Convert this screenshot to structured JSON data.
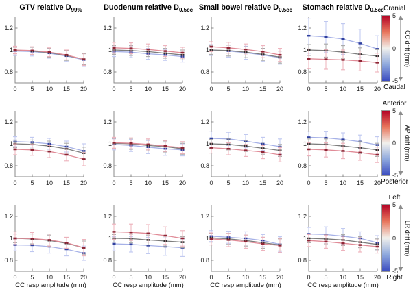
{
  "chart_data": {
    "type": "line",
    "layout": {
      "rows": 3,
      "cols": 4
    },
    "x": [
      0,
      5,
      10,
      15,
      20
    ],
    "xticks": [
      "0",
      "5",
      "10",
      "15",
      "20"
    ],
    "yticks": [
      "0.8",
      "1",
      "1.2"
    ],
    "ytick_values": [
      0.8,
      1.0,
      1.2
    ],
    "ylim": [
      0.7,
      1.3
    ],
    "xlim": [
      0,
      20
    ],
    "grid": "off",
    "xlabel": "CC resp amplitude (mm)",
    "col_titles": [
      {
        "text": "GTV relative D",
        "sub": "99%"
      },
      {
        "text": "Duodenum relative D",
        "sub": "0.5cc"
      },
      {
        "text": "Small bowel relative D",
        "sub": "0.5cc"
      },
      {
        "text": "Stomach relative D",
        "sub": "0.5cc"
      }
    ],
    "series_styles": {
      "plus5": {
        "colorbar_value": 5,
        "line": "#e08b97",
        "error": "#edb0ba",
        "marker": "#8e2636"
      },
      "zero": {
        "colorbar_value": 0,
        "line": "#7d7d7d",
        "error": "#a8a8a8",
        "marker": "#303030"
      },
      "minus5": {
        "colorbar_value": -5,
        "line": "#a6b1e7",
        "error": "#bec7f0",
        "marker": "#2f3f9e"
      }
    },
    "colorbar_gradient": [
      "#b40426",
      "#e8765c",
      "#f1f0ec",
      "#8ea8dd",
      "#3b4cc0"
    ],
    "colorbars": [
      {
        "axis_label": "CC drift (mm)",
        "top_label": "Cranial",
        "bottom_label": "Caudal",
        "ticks": {
          "top": "5",
          "mid": "0",
          "bottom": "-5"
        }
      },
      {
        "axis_label": "AP drift (mm)",
        "top_label": "Anterior",
        "bottom_label": "Posterior",
        "ticks": {
          "top": "5",
          "mid": "0",
          "bottom": "-5"
        }
      },
      {
        "axis_label": "LR drift (mm)",
        "top_label": "Left",
        "bottom_label": "Right",
        "ticks": {
          "top": "5",
          "mid": "0",
          "bottom": "-5"
        }
      }
    ],
    "plots": [
      {
        "name": "cc-gtv",
        "row": 0,
        "col": 0,
        "series": {
          "plus5": {
            "values": [
              1.0,
              0.995,
              0.98,
              0.955,
              0.915
            ],
            "err": [
              0.035,
              0.035,
              0.04,
              0.045,
              0.055
            ]
          },
          "zero": {
            "values": [
              0.995,
              0.99,
              0.975,
              0.95,
              0.915
            ],
            "err": [
              0.03,
              0.035,
              0.04,
              0.045,
              0.05
            ]
          },
          "minus5": {
            "values": [
              0.99,
              0.985,
              0.97,
              0.945,
              0.91
            ],
            "err": [
              0.04,
              0.04,
              0.045,
              0.05,
              0.06
            ]
          }
        }
      },
      {
        "name": "cc-duodenum",
        "row": 0,
        "col": 1,
        "series": {
          "plus5": {
            "values": [
              1.02,
              1.015,
              1.005,
              0.99,
              0.975
            ],
            "err": [
              0.05,
              0.05,
              0.05,
              0.05,
              0.05
            ]
          },
          "zero": {
            "values": [
              1.0,
              0.995,
              0.985,
              0.97,
              0.955
            ],
            "err": [
              0.04,
              0.045,
              0.045,
              0.045,
              0.045
            ]
          },
          "minus5": {
            "values": [
              0.985,
              0.98,
              0.965,
              0.955,
              0.94
            ],
            "err": [
              0.045,
              0.05,
              0.05,
              0.05,
              0.05
            ]
          }
        }
      },
      {
        "name": "cc-small-bowel",
        "row": 0,
        "col": 2,
        "series": {
          "plus5": {
            "values": [
              1.03,
              1.02,
              1.005,
              0.985,
              0.955
            ],
            "err": [
              0.045,
              0.05,
              0.05,
              0.055,
              0.06
            ]
          },
          "zero": {
            "values": [
              1.0,
              0.995,
              0.98,
              0.96,
              0.935
            ],
            "err": [
              0.04,
              0.05,
              0.05,
              0.055,
              0.055
            ]
          },
          "minus5": {
            "values": [
              1.0,
              0.99,
              0.975,
              0.955,
              0.93
            ],
            "err": [
              0.05,
              0.055,
              0.06,
              0.06,
              0.06
            ]
          }
        }
      },
      {
        "name": "cc-stomach",
        "row": 0,
        "col": 3,
        "series": {
          "plus5": {
            "values": [
              0.92,
              0.915,
              0.91,
              0.9,
              0.885
            ],
            "err": [
              0.09,
              0.09,
              0.09,
              0.09,
              0.085
            ]
          },
          "zero": {
            "values": [
              1.0,
              0.995,
              0.98,
              0.96,
              0.945
            ],
            "err": [
              0.05,
              0.06,
              0.06,
              0.06,
              0.06
            ]
          },
          "minus5": {
            "values": [
              1.13,
              1.12,
              1.1,
              1.06,
              1.01
            ],
            "err": [
              0.16,
              0.14,
              0.14,
              0.13,
              0.12
            ]
          }
        }
      },
      {
        "name": "ap-gtv",
        "row": 1,
        "col": 0,
        "series": {
          "plus5": {
            "values": [
              0.95,
              0.945,
              0.93,
              0.9,
              0.86
            ],
            "err": [
              0.05,
              0.05,
              0.055,
              0.055,
              0.06
            ]
          },
          "zero": {
            "values": [
              1.0,
              0.995,
              0.98,
              0.955,
              0.915
            ],
            "err": [
              0.035,
              0.04,
              0.045,
              0.05,
              0.055
            ]
          },
          "minus5": {
            "values": [
              1.02,
              1.015,
              1.0,
              0.975,
              0.935
            ],
            "err": [
              0.045,
              0.045,
              0.05,
              0.05,
              0.065
            ]
          }
        }
      },
      {
        "name": "ap-duodenum",
        "row": 1,
        "col": 1,
        "series": {
          "plus5": {
            "values": [
              1.01,
              1.005,
              0.995,
              0.98,
              0.965
            ],
            "err": [
              0.05,
              0.05,
              0.05,
              0.05,
              0.055
            ]
          },
          "zero": {
            "values": [
              1.005,
              1.0,
              0.985,
              0.975,
              0.955
            ],
            "err": [
              0.045,
              0.05,
              0.05,
              0.05,
              0.05
            ]
          },
          "minus5": {
            "values": [
              0.995,
              0.985,
              0.97,
              0.955,
              0.945
            ],
            "err": [
              0.05,
              0.055,
              0.06,
              0.06,
              0.055
            ]
          }
        }
      },
      {
        "name": "ap-small-bowel",
        "row": 1,
        "col": 2,
        "series": {
          "plus5": {
            "values": [
              0.965,
              0.955,
              0.94,
              0.925,
              0.9
            ],
            "err": [
              0.05,
              0.055,
              0.055,
              0.06,
              0.065
            ]
          },
          "zero": {
            "values": [
              1.0,
              0.995,
              0.98,
              0.96,
              0.94
            ],
            "err": [
              0.04,
              0.05,
              0.05,
              0.055,
              0.055
            ]
          },
          "minus5": {
            "values": [
              1.05,
              1.045,
              1.025,
              1.0,
              0.975
            ],
            "err": [
              0.06,
              0.06,
              0.06,
              0.06,
              0.07
            ]
          }
        }
      },
      {
        "name": "ap-stomach",
        "row": 1,
        "col": 3,
        "series": {
          "plus5": {
            "values": [
              0.95,
              0.945,
              0.935,
              0.92,
              0.9
            ],
            "err": [
              0.06,
              0.065,
              0.07,
              0.07,
              0.07
            ]
          },
          "zero": {
            "values": [
              1.0,
              0.995,
              0.98,
              0.965,
              0.945
            ],
            "err": [
              0.045,
              0.05,
              0.05,
              0.055,
              0.06
            ]
          },
          "minus5": {
            "values": [
              1.06,
              1.055,
              1.04,
              1.02,
              0.99
            ],
            "err": [
              0.05,
              0.06,
              0.06,
              0.06,
              0.075
            ]
          }
        }
      },
      {
        "name": "lr-gtv",
        "row": 2,
        "col": 0,
        "series": {
          "plus5": {
            "values": [
              1.0,
              0.998,
              0.985,
              0.96,
              0.915
            ],
            "err": [
              0.06,
              0.055,
              0.055,
              0.05,
              0.075
            ]
          },
          "zero": {
            "values": [
              1.0,
              0.995,
              0.98,
              0.955,
              0.915
            ],
            "err": [
              0.04,
              0.045,
              0.05,
              0.05,
              0.06
            ]
          },
          "minus5": {
            "values": [
              0.94,
              0.938,
              0.925,
              0.9,
              0.865
            ],
            "err": [
              0.055,
              0.06,
              0.06,
              0.06,
              0.065
            ]
          }
        }
      },
      {
        "name": "lr-duodenum",
        "row": 2,
        "col": 1,
        "series": {
          "plus5": {
            "values": [
              1.06,
              1.055,
              1.045,
              1.025,
              1.0
            ],
            "err": [
              0.07,
              0.075,
              0.08,
              0.08,
              0.07
            ]
          },
          "zero": {
            "values": [
              1.0,
              0.998,
              0.985,
              0.975,
              0.965
            ],
            "err": [
              0.035,
              0.04,
              0.045,
              0.045,
              0.05
            ]
          },
          "minus5": {
            "values": [
              0.95,
              0.945,
              0.935,
              0.925,
              0.915
            ],
            "err": [
              0.065,
              0.07,
              0.075,
              0.08,
              0.08
            ]
          }
        }
      },
      {
        "name": "lr-small-bowel",
        "row": 2,
        "col": 2,
        "series": {
          "plus5": {
            "values": [
              0.995,
              0.985,
              0.97,
              0.95,
              0.935
            ],
            "err": [
              0.055,
              0.06,
              0.06,
              0.06,
              0.065
            ]
          },
          "zero": {
            "values": [
              1.005,
              0.995,
              0.98,
              0.96,
              0.94
            ],
            "err": [
              0.04,
              0.05,
              0.05,
              0.05,
              0.055
            ]
          },
          "minus5": {
            "values": [
              1.02,
              1.01,
              1.0,
              0.98,
              0.945
            ],
            "err": [
              0.05,
              0.055,
              0.06,
              0.055,
              0.07
            ]
          }
        }
      },
      {
        "name": "lr-stomach",
        "row": 2,
        "col": 3,
        "series": {
          "plus5": {
            "values": [
              0.98,
              0.97,
              0.955,
              0.94,
              0.925
            ],
            "err": [
              0.055,
              0.06,
              0.065,
              0.065,
              0.06
            ]
          },
          "zero": {
            "values": [
              1.0,
              0.995,
              0.985,
              0.965,
              0.945
            ],
            "err": [
              0.04,
              0.045,
              0.05,
              0.05,
              0.05
            ]
          },
          "minus5": {
            "values": [
              1.04,
              1.035,
              1.02,
              1.0,
              0.96
            ],
            "err": [
              0.06,
              0.07,
              0.07,
              0.06,
              0.065
            ]
          }
        }
      }
    ]
  }
}
